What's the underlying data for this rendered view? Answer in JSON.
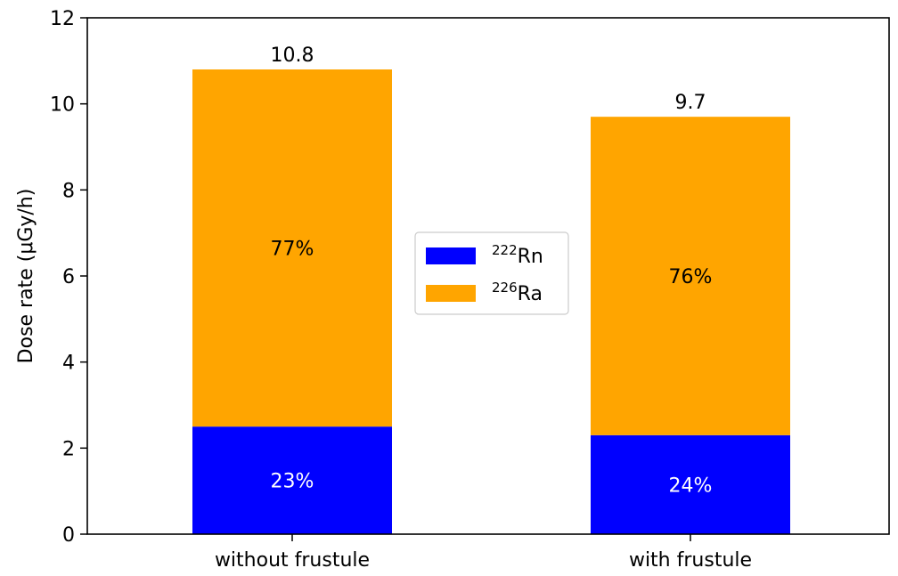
{
  "chart_data": {
    "type": "bar",
    "stacked": true,
    "categories": [
      "without frustule",
      "with frustule"
    ],
    "series": [
      {
        "name": "222Rn",
        "label_mass": "222",
        "label_symbol": "Rn",
        "color": "#0000ff",
        "values": [
          2.5,
          2.3
        ],
        "percent_labels": [
          "23%",
          "24%"
        ],
        "percent_label_color": "#ffffff"
      },
      {
        "name": "226Ra",
        "label_mass": "226",
        "label_symbol": "Ra",
        "color": "#ffa500",
        "values": [
          8.3,
          7.4
        ],
        "percent_labels": [
          "77%",
          "76%"
        ],
        "percent_label_color": "#000000"
      }
    ],
    "totals": [
      10.8,
      9.7
    ],
    "total_labels": [
      "10.8",
      "9.7"
    ],
    "ylabel": "Dose rate (μGy/h)",
    "xlabel": "",
    "title": "",
    "ylim": [
      0,
      12
    ],
    "yticks": [
      0,
      2,
      4,
      6,
      8,
      10,
      12
    ],
    "grid": false,
    "legend_position": "center"
  }
}
